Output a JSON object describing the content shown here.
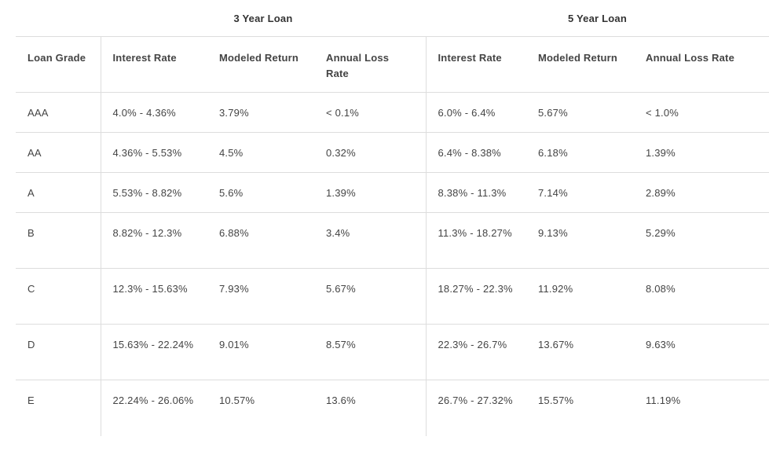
{
  "groups": {
    "three_year": "3 Year Loan",
    "five_year": "5 Year Loan"
  },
  "columns": {
    "grade": "Loan Grade",
    "interest_rate": "Interest Rate",
    "modeled_return": "Modeled Return",
    "annual_loss_rate": "Annual Loss Rate"
  },
  "rows": [
    {
      "grade": "AAA",
      "y3_rate": "4.0% - 4.36%",
      "y3_return": "3.79%",
      "y3_loss": "< 0.1%",
      "y5_rate": "6.0% - 6.4%",
      "y5_return": "5.67%",
      "y5_loss": "< 1.0%"
    },
    {
      "grade": "AA",
      "y3_rate": "4.36% - 5.53%",
      "y3_return": "4.5%",
      "y3_loss": "0.32%",
      "y5_rate": "6.4% - 8.38%",
      "y5_return": "6.18%",
      "y5_loss": "1.39%"
    },
    {
      "grade": "A",
      "y3_rate": "5.53% - 8.82%",
      "y3_return": "5.6%",
      "y3_loss": "1.39%",
      "y5_rate": "8.38% - 11.3%",
      "y5_return": "7.14%",
      "y5_loss": "2.89%"
    },
    {
      "grade": "B",
      "y3_rate": "8.82% - 12.3%",
      "y3_return": "6.88%",
      "y3_loss": "3.4%",
      "y5_rate": "11.3% - 18.27%",
      "y5_return": "9.13%",
      "y5_loss": "5.29%"
    },
    {
      "grade": "C",
      "y3_rate": "12.3% - 15.63%",
      "y3_return": "7.93%",
      "y3_loss": "5.67%",
      "y5_rate": "18.27% - 22.3%",
      "y5_return": "11.92%",
      "y5_loss": "8.08%"
    },
    {
      "grade": "D",
      "y3_rate": "15.63% - 22.24%",
      "y3_return": "9.01%",
      "y3_loss": "8.57%",
      "y5_rate": "22.3% - 26.7%",
      "y5_return": "13.67%",
      "y5_loss": "9.63%"
    },
    {
      "grade": "E",
      "y3_rate": "22.24% - 26.06%",
      "y3_return": "10.57%",
      "y3_loss": "13.6%",
      "y5_rate": "26.7% - 27.32%",
      "y5_return": "15.57%",
      "y5_loss": "11.19%"
    }
  ]
}
